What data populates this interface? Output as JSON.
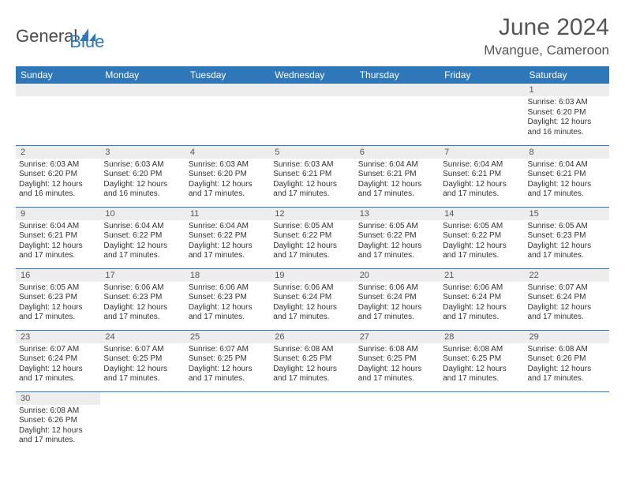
{
  "brand": {
    "part1": "General",
    "part2": "Blue"
  },
  "title": "June 2024",
  "location": "Mvangue, Cameroon",
  "colors": {
    "header_bg": "#2e77b8",
    "header_text": "#ffffff",
    "daynum_bg": "#ededed",
    "border": "#2e77b8",
    "text": "#333333",
    "title_color": "#555555"
  },
  "dayHeaders": [
    "Sunday",
    "Monday",
    "Tuesday",
    "Wednesday",
    "Thursday",
    "Friday",
    "Saturday"
  ],
  "weeks": [
    [
      null,
      null,
      null,
      null,
      null,
      null,
      {
        "n": "1",
        "sr": "6:03 AM",
        "ss": "6:20 PM",
        "dl": "12 hours and 16 minutes."
      }
    ],
    [
      {
        "n": "2",
        "sr": "6:03 AM",
        "ss": "6:20 PM",
        "dl": "12 hours and 16 minutes."
      },
      {
        "n": "3",
        "sr": "6:03 AM",
        "ss": "6:20 PM",
        "dl": "12 hours and 16 minutes."
      },
      {
        "n": "4",
        "sr": "6:03 AM",
        "ss": "6:20 PM",
        "dl": "12 hours and 17 minutes."
      },
      {
        "n": "5",
        "sr": "6:03 AM",
        "ss": "6:21 PM",
        "dl": "12 hours and 17 minutes."
      },
      {
        "n": "6",
        "sr": "6:04 AM",
        "ss": "6:21 PM",
        "dl": "12 hours and 17 minutes."
      },
      {
        "n": "7",
        "sr": "6:04 AM",
        "ss": "6:21 PM",
        "dl": "12 hours and 17 minutes."
      },
      {
        "n": "8",
        "sr": "6:04 AM",
        "ss": "6:21 PM",
        "dl": "12 hours and 17 minutes."
      }
    ],
    [
      {
        "n": "9",
        "sr": "6:04 AM",
        "ss": "6:21 PM",
        "dl": "12 hours and 17 minutes."
      },
      {
        "n": "10",
        "sr": "6:04 AM",
        "ss": "6:22 PM",
        "dl": "12 hours and 17 minutes."
      },
      {
        "n": "11",
        "sr": "6:04 AM",
        "ss": "6:22 PM",
        "dl": "12 hours and 17 minutes."
      },
      {
        "n": "12",
        "sr": "6:05 AM",
        "ss": "6:22 PM",
        "dl": "12 hours and 17 minutes."
      },
      {
        "n": "13",
        "sr": "6:05 AM",
        "ss": "6:22 PM",
        "dl": "12 hours and 17 minutes."
      },
      {
        "n": "14",
        "sr": "6:05 AM",
        "ss": "6:22 PM",
        "dl": "12 hours and 17 minutes."
      },
      {
        "n": "15",
        "sr": "6:05 AM",
        "ss": "6:23 PM",
        "dl": "12 hours and 17 minutes."
      }
    ],
    [
      {
        "n": "16",
        "sr": "6:05 AM",
        "ss": "6:23 PM",
        "dl": "12 hours and 17 minutes."
      },
      {
        "n": "17",
        "sr": "6:06 AM",
        "ss": "6:23 PM",
        "dl": "12 hours and 17 minutes."
      },
      {
        "n": "18",
        "sr": "6:06 AM",
        "ss": "6:23 PM",
        "dl": "12 hours and 17 minutes."
      },
      {
        "n": "19",
        "sr": "6:06 AM",
        "ss": "6:24 PM",
        "dl": "12 hours and 17 minutes."
      },
      {
        "n": "20",
        "sr": "6:06 AM",
        "ss": "6:24 PM",
        "dl": "12 hours and 17 minutes."
      },
      {
        "n": "21",
        "sr": "6:06 AM",
        "ss": "6:24 PM",
        "dl": "12 hours and 17 minutes."
      },
      {
        "n": "22",
        "sr": "6:07 AM",
        "ss": "6:24 PM",
        "dl": "12 hours and 17 minutes."
      }
    ],
    [
      {
        "n": "23",
        "sr": "6:07 AM",
        "ss": "6:24 PM",
        "dl": "12 hours and 17 minutes."
      },
      {
        "n": "24",
        "sr": "6:07 AM",
        "ss": "6:25 PM",
        "dl": "12 hours and 17 minutes."
      },
      {
        "n": "25",
        "sr": "6:07 AM",
        "ss": "6:25 PM",
        "dl": "12 hours and 17 minutes."
      },
      {
        "n": "26",
        "sr": "6:08 AM",
        "ss": "6:25 PM",
        "dl": "12 hours and 17 minutes."
      },
      {
        "n": "27",
        "sr": "6:08 AM",
        "ss": "6:25 PM",
        "dl": "12 hours and 17 minutes."
      },
      {
        "n": "28",
        "sr": "6:08 AM",
        "ss": "6:25 PM",
        "dl": "12 hours and 17 minutes."
      },
      {
        "n": "29",
        "sr": "6:08 AM",
        "ss": "6:26 PM",
        "dl": "12 hours and 17 minutes."
      }
    ],
    [
      {
        "n": "30",
        "sr": "6:08 AM",
        "ss": "6:26 PM",
        "dl": "12 hours and 17 minutes."
      },
      null,
      null,
      null,
      null,
      null,
      null
    ]
  ],
  "labels": {
    "sunrise": "Sunrise:",
    "sunset": "Sunset:",
    "daylight": "Daylight:"
  }
}
